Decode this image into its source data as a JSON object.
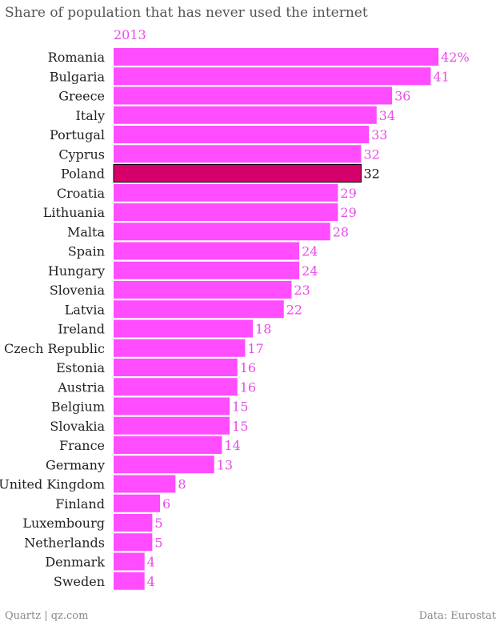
{
  "chart_data": {
    "type": "bar",
    "orientation": "horizontal",
    "title": "Share of population that has never used the internet",
    "series": [
      {
        "name": "2013"
      }
    ],
    "categories": [
      "Romania",
      "Bulgaria",
      "Greece",
      "Italy",
      "Portugal",
      "Cyprus",
      "Poland",
      "Croatia",
      "Lithuania",
      "Malta",
      "Spain",
      "Hungary",
      "Slovenia",
      "Latvia",
      "Ireland",
      "Czech Republic",
      "Estonia",
      "Austria",
      "Belgium",
      "Slovakia",
      "France",
      "Germany",
      "United Kingdom",
      "Finland",
      "Luxembourg",
      "Netherlands",
      "Denmark",
      "Sweden"
    ],
    "values": [
      42,
      41,
      36,
      34,
      33,
      32,
      32,
      29,
      29,
      28,
      24,
      24,
      23,
      22,
      18,
      17,
      16,
      16,
      15,
      15,
      14,
      13,
      8,
      6,
      5,
      5,
      4,
      4
    ],
    "value_labels": [
      "42%",
      "41",
      "36",
      "34",
      "33",
      "32",
      "32",
      "29",
      "29",
      "28",
      "24",
      "24",
      "23",
      "22",
      "18",
      "17",
      "16",
      "16",
      "15",
      "15",
      "14",
      "13",
      "8",
      "6",
      "5",
      "5",
      "4",
      "4"
    ],
    "highlight": "Poland",
    "xlim": [
      0,
      42
    ],
    "grid": false,
    "colors": {
      "bar": "#ff4cff",
      "highlight": "#d6006b",
      "label": "#e84ce8",
      "highlight_label": "#111111",
      "category_text": "#222222"
    }
  },
  "footer": {
    "source_left": "Quartz | qz.com",
    "source_right": "Data: Eurostat"
  }
}
